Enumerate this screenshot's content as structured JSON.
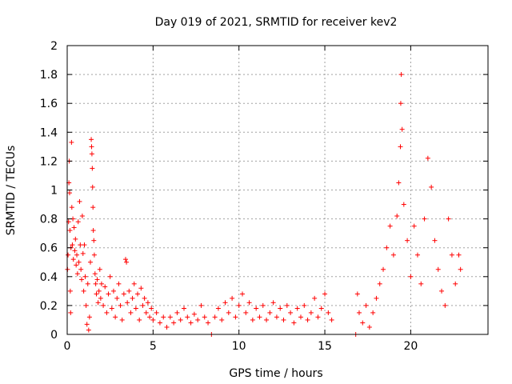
{
  "chart_data": {
    "type": "scatter",
    "title": "Day 019 of 2021, SRMTID for receiver kev2",
    "xlabel": "GPS time / hours",
    "ylabel": "SRMTID / TECUs",
    "xlim": [
      0,
      24.5
    ],
    "ylim": [
      0,
      2
    ],
    "x_ticks": [
      0,
      5,
      10,
      15,
      20
    ],
    "x_tick_labels": [
      "0",
      "5",
      "10",
      "15",
      "20"
    ],
    "y_ticks": [
      0,
      0.2,
      0.4,
      0.6,
      0.8,
      1,
      1.2,
      1.4,
      1.6,
      1.8,
      2
    ],
    "y_tick_labels": [
      "0",
      "0.2",
      "0.4",
      "0.6",
      "0.8",
      "1",
      "1.2",
      "1.4",
      "1.6",
      "1.8",
      "2"
    ],
    "grid": true,
    "marker": "+",
    "series": [
      {
        "name": "SRMTID",
        "color": "#ff0000",
        "points": [
          [
            0.02,
            0.45
          ],
          [
            0.05,
            0.55
          ],
          [
            0.08,
            0.78
          ],
          [
            0.1,
            1.05
          ],
          [
            0.12,
            1.2
          ],
          [
            0.14,
            0.98
          ],
          [
            0.16,
            0.72
          ],
          [
            0.18,
            0.3
          ],
          [
            0.2,
            0.15
          ],
          [
            0.22,
            0.6
          ],
          [
            0.25,
            1.33
          ],
          [
            0.27,
            0.88
          ],
          [
            0.3,
            0.62
          ],
          [
            0.33,
            0.8
          ],
          [
            0.36,
            0.52
          ],
          [
            0.4,
            0.74
          ],
          [
            0.44,
            0.58
          ],
          [
            0.48,
            0.66
          ],
          [
            0.52,
            0.48
          ],
          [
            0.56,
            0.55
          ],
          [
            0.6,
            0.42
          ],
          [
            0.64,
            0.78
          ],
          [
            0.68,
            0.5
          ],
          [
            0.72,
            0.92
          ],
          [
            0.76,
            0.62
          ],
          [
            0.8,
            0.45
          ],
          [
            0.84,
            0.38
          ],
          [
            0.88,
            0.82
          ],
          [
            0.92,
            0.56
          ],
          [
            0.96,
            0.3
          ],
          [
            1.0,
            0.62
          ],
          [
            1.05,
            0.4
          ],
          [
            1.1,
            0.2
          ],
          [
            1.15,
            0.07
          ],
          [
            1.2,
            0.35
          ],
          [
            1.25,
            0.03
          ],
          [
            1.3,
            0.12
          ],
          [
            1.35,
            0.5
          ],
          [
            1.4,
            1.35
          ],
          [
            1.42,
            1.3
          ],
          [
            1.44,
            1.25
          ],
          [
            1.46,
            1.15
          ],
          [
            1.48,
            1.02
          ],
          [
            1.5,
            0.88
          ],
          [
            1.52,
            0.72
          ],
          [
            1.55,
            0.65
          ],
          [
            1.58,
            0.55
          ],
          [
            1.62,
            0.42
          ],
          [
            1.66,
            0.35
          ],
          [
            1.7,
            0.28
          ],
          [
            1.75,
            0.38
          ],
          [
            1.8,
            0.22
          ],
          [
            1.85,
            0.3
          ],
          [
            1.9,
            0.45
          ],
          [
            1.95,
            0.25
          ],
          [
            2.0,
            0.35
          ],
          [
            2.1,
            0.2
          ],
          [
            2.2,
            0.33
          ],
          [
            2.3,
            0.15
          ],
          [
            2.4,
            0.28
          ],
          [
            2.5,
            0.4
          ],
          [
            2.6,
            0.18
          ],
          [
            2.7,
            0.3
          ],
          [
            2.8,
            0.12
          ],
          [
            2.9,
            0.25
          ],
          [
            3.0,
            0.35
          ],
          [
            3.1,
            0.2
          ],
          [
            3.2,
            0.1
          ],
          [
            3.3,
            0.28
          ],
          [
            3.4,
            0.52
          ],
          [
            3.45,
            0.5
          ],
          [
            3.5,
            0.22
          ],
          [
            3.6,
            0.3
          ],
          [
            3.7,
            0.15
          ],
          [
            3.8,
            0.25
          ],
          [
            3.9,
            0.35
          ],
          [
            4.0,
            0.18
          ],
          [
            4.1,
            0.28
          ],
          [
            4.2,
            0.1
          ],
          [
            4.3,
            0.32
          ],
          [
            4.4,
            0.2
          ],
          [
            4.5,
            0.25
          ],
          [
            4.6,
            0.15
          ],
          [
            4.7,
            0.22
          ],
          [
            4.8,
            0.12
          ],
          [
            4.9,
            0.18
          ],
          [
            5.0,
            0.1
          ],
          [
            5.2,
            0.15
          ],
          [
            5.4,
            0.08
          ],
          [
            5.6,
            0.12
          ],
          [
            5.8,
            0.05
          ],
          [
            6.0,
            0.12
          ],
          [
            6.2,
            0.08
          ],
          [
            6.4,
            0.15
          ],
          [
            6.6,
            0.1
          ],
          [
            6.8,
            0.18
          ],
          [
            7.0,
            0.12
          ],
          [
            7.2,
            0.08
          ],
          [
            7.4,
            0.14
          ],
          [
            7.6,
            0.1
          ],
          [
            7.8,
            0.2
          ],
          [
            8.0,
            0.12
          ],
          [
            8.2,
            0.08
          ],
          [
            8.4,
            0.0
          ],
          [
            8.6,
            0.12
          ],
          [
            8.8,
            0.18
          ],
          [
            9.0,
            0.1
          ],
          [
            9.2,
            0.22
          ],
          [
            9.4,
            0.15
          ],
          [
            9.6,
            0.25
          ],
          [
            9.8,
            0.12
          ],
          [
            10.0,
            0.2
          ],
          [
            10.2,
            0.28
          ],
          [
            10.4,
            0.15
          ],
          [
            10.6,
            0.22
          ],
          [
            10.8,
            0.1
          ],
          [
            11.0,
            0.18
          ],
          [
            11.2,
            0.12
          ],
          [
            11.4,
            0.2
          ],
          [
            11.6,
            0.1
          ],
          [
            11.8,
            0.15
          ],
          [
            12.0,
            0.22
          ],
          [
            12.2,
            0.12
          ],
          [
            12.4,
            0.18
          ],
          [
            12.6,
            0.1
          ],
          [
            12.8,
            0.2
          ],
          [
            13.0,
            0.15
          ],
          [
            13.2,
            0.08
          ],
          [
            13.4,
            0.18
          ],
          [
            13.6,
            0.12
          ],
          [
            13.8,
            0.2
          ],
          [
            14.0,
            0.1
          ],
          [
            14.2,
            0.15
          ],
          [
            14.4,
            0.25
          ],
          [
            14.6,
            0.12
          ],
          [
            14.8,
            0.18
          ],
          [
            15.0,
            0.28
          ],
          [
            15.2,
            0.15
          ],
          [
            15.4,
            0.1
          ],
          [
            16.8,
            0.0
          ],
          [
            16.9,
            0.28
          ],
          [
            17.0,
            0.15
          ],
          [
            17.2,
            0.08
          ],
          [
            17.4,
            0.2
          ],
          [
            17.6,
            0.05
          ],
          [
            17.8,
            0.15
          ],
          [
            18.0,
            0.25
          ],
          [
            18.2,
            0.35
          ],
          [
            18.4,
            0.45
          ],
          [
            18.6,
            0.6
          ],
          [
            18.8,
            0.75
          ],
          [
            19.0,
            0.55
          ],
          [
            19.2,
            0.82
          ],
          [
            19.3,
            1.05
          ],
          [
            19.4,
            1.3
          ],
          [
            19.42,
            1.6
          ],
          [
            19.45,
            1.8
          ],
          [
            19.5,
            1.42
          ],
          [
            19.6,
            0.9
          ],
          [
            19.8,
            0.65
          ],
          [
            20.0,
            0.4
          ],
          [
            20.2,
            0.75
          ],
          [
            20.4,
            0.55
          ],
          [
            20.6,
            0.35
          ],
          [
            20.8,
            0.8
          ],
          [
            21.0,
            1.22
          ],
          [
            21.2,
            1.02
          ],
          [
            21.4,
            0.65
          ],
          [
            21.6,
            0.45
          ],
          [
            21.8,
            0.3
          ],
          [
            22.0,
            0.2
          ],
          [
            22.2,
            0.8
          ],
          [
            22.4,
            0.55
          ],
          [
            22.6,
            0.35
          ],
          [
            22.8,
            0.55
          ],
          [
            22.9,
            0.45
          ]
        ]
      }
    ]
  }
}
